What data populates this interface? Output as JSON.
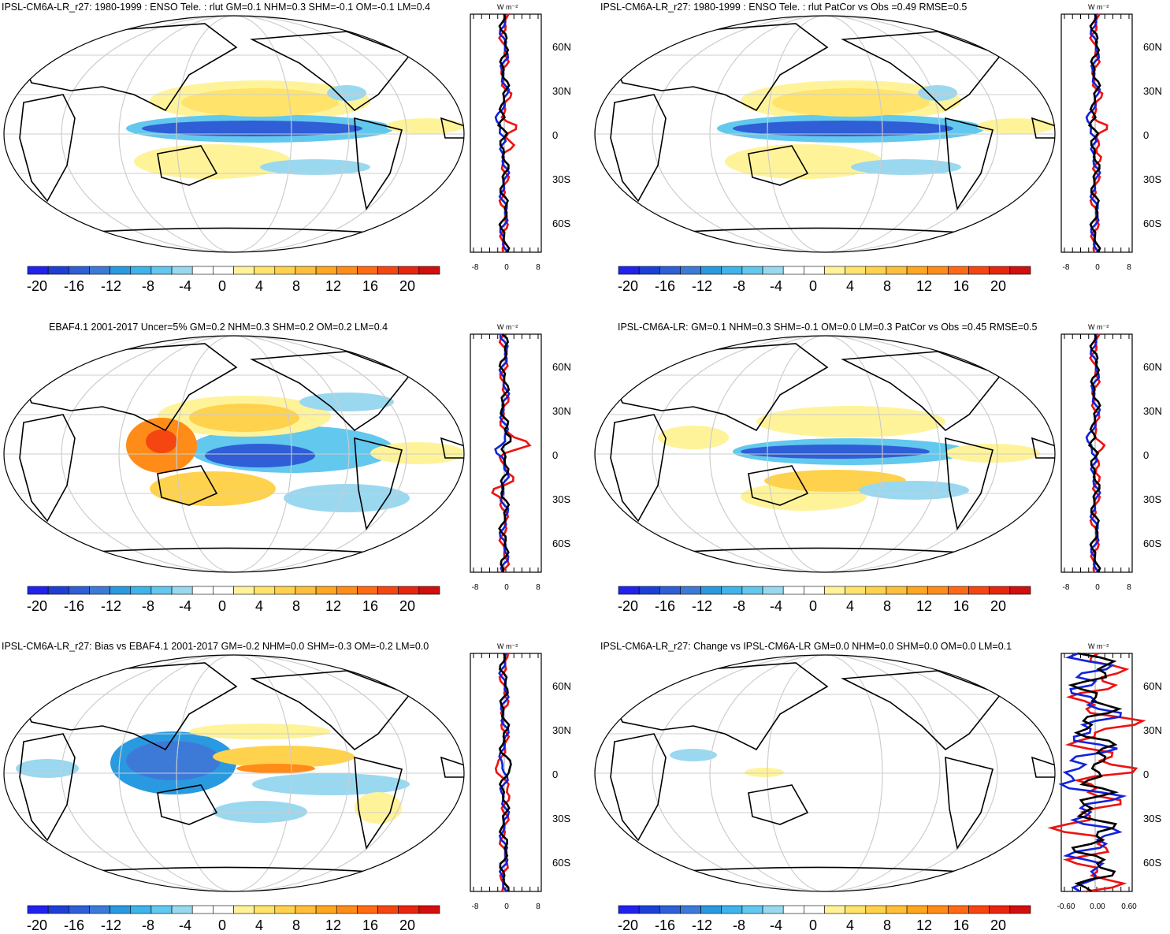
{
  "colorbar": {
    "labels": [
      "-20",
      "-16",
      "-12",
      "-8",
      "-4",
      "0",
      "4",
      "8",
      "12",
      "16",
      "20"
    ],
    "colors": [
      "#2222ee",
      "#1d3fd6",
      "#2f5ed6",
      "#3d7ad8",
      "#2a9ae0",
      "#3db4ea",
      "#62c8ee",
      "#9ad8f0",
      "#ffffff",
      "#ffffff",
      "#fff39a",
      "#ffe36b",
      "#ffd24d",
      "#ffbf3a",
      "#ffa620",
      "#ff8c18",
      "#ff6a12",
      "#f54612",
      "#e8260e",
      "#d10f0e"
    ]
  },
  "profile": {
    "unit": "W m⁻²",
    "lat_labels": [
      "60N",
      "30N",
      "0",
      "30S",
      "60S"
    ],
    "x_labels_default": [
      "-8",
      "0",
      "8"
    ],
    "x_labels_change": [
      "-0.60",
      "0.00",
      "0.60"
    ],
    "line_colors": {
      "red": "#ee1111",
      "blue": "#1122dd",
      "black": "#000000"
    }
  },
  "panels": [
    {
      "id": "p1",
      "title": "IPSL-CM6A-LR_r27: 1980-1999 : ENSO Tele. : rlut GM=0.1 NHM=0.3 SHM=-0.1 OM=-0.1 LM=0.4",
      "xlabels": "x_labels_default"
    },
    {
      "id": "p2",
      "title": "IPSL-CM6A-LR_r27: 1980-1999 : ENSO Tele. : rlut PatCor vs Obs =0.49 RMSE=0.5",
      "xlabels": "x_labels_default"
    },
    {
      "id": "p3",
      "title": "EBAF4.1 2001-2017 Uncer=5% GM=0.2 NHM=0.3 SHM=0.2 OM=0.2 LM=0.4",
      "xlabels": "x_labels_default"
    },
    {
      "id": "p4",
      "title": "IPSL-CM6A-LR: GM=0.1 NHM=0.3 SHM=-0.1 OM=0.0 LM=0.3 PatCor vs Obs =0.45 RMSE=0.5",
      "xlabels": "x_labels_default"
    },
    {
      "id": "p5",
      "title": "IPSL-CM6A-LR_r27: Bias vs EBAF4.1 2001-2017 GM=-0.2 NHM=0.0 SHM=-0.3 OM=-0.2 LM=0.0",
      "xlabels": "x_labels_default"
    },
    {
      "id": "p6",
      "title": "IPSL-CM6A-LR_r27: Change vs IPSL-CM6A-LR GM=0.0 NHM=0.0 SHM=0.0 OM=0.0 LM=0.1",
      "xlabels": "x_labels_change"
    }
  ]
}
